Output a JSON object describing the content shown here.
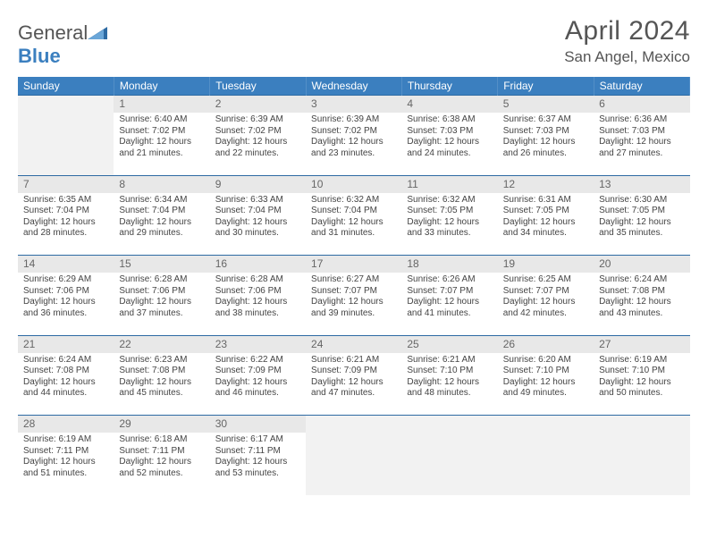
{
  "brand": {
    "text1": "General",
    "text2": "Blue"
  },
  "title": "April 2024",
  "location": "San Angel, Mexico",
  "colors": {
    "header_bg": "#3b7fbf",
    "header_text": "#ffffff",
    "daynum_bg": "#e8e8e8",
    "row_divider": "#2d6aa3",
    "body_text": "#444444"
  },
  "day_headers": [
    "Sunday",
    "Monday",
    "Tuesday",
    "Wednesday",
    "Thursday",
    "Friday",
    "Saturday"
  ],
  "weeks": [
    [
      null,
      {
        "n": "1",
        "sr": "Sunrise: 6:40 AM",
        "ss": "Sunset: 7:02 PM",
        "d1": "Daylight: 12 hours",
        "d2": "and 21 minutes."
      },
      {
        "n": "2",
        "sr": "Sunrise: 6:39 AM",
        "ss": "Sunset: 7:02 PM",
        "d1": "Daylight: 12 hours",
        "d2": "and 22 minutes."
      },
      {
        "n": "3",
        "sr": "Sunrise: 6:39 AM",
        "ss": "Sunset: 7:02 PM",
        "d1": "Daylight: 12 hours",
        "d2": "and 23 minutes."
      },
      {
        "n": "4",
        "sr": "Sunrise: 6:38 AM",
        "ss": "Sunset: 7:03 PM",
        "d1": "Daylight: 12 hours",
        "d2": "and 24 minutes."
      },
      {
        "n": "5",
        "sr": "Sunrise: 6:37 AM",
        "ss": "Sunset: 7:03 PM",
        "d1": "Daylight: 12 hours",
        "d2": "and 26 minutes."
      },
      {
        "n": "6",
        "sr": "Sunrise: 6:36 AM",
        "ss": "Sunset: 7:03 PM",
        "d1": "Daylight: 12 hours",
        "d2": "and 27 minutes."
      }
    ],
    [
      {
        "n": "7",
        "sr": "Sunrise: 6:35 AM",
        "ss": "Sunset: 7:04 PM",
        "d1": "Daylight: 12 hours",
        "d2": "and 28 minutes."
      },
      {
        "n": "8",
        "sr": "Sunrise: 6:34 AM",
        "ss": "Sunset: 7:04 PM",
        "d1": "Daylight: 12 hours",
        "d2": "and 29 minutes."
      },
      {
        "n": "9",
        "sr": "Sunrise: 6:33 AM",
        "ss": "Sunset: 7:04 PM",
        "d1": "Daylight: 12 hours",
        "d2": "and 30 minutes."
      },
      {
        "n": "10",
        "sr": "Sunrise: 6:32 AM",
        "ss": "Sunset: 7:04 PM",
        "d1": "Daylight: 12 hours",
        "d2": "and 31 minutes."
      },
      {
        "n": "11",
        "sr": "Sunrise: 6:32 AM",
        "ss": "Sunset: 7:05 PM",
        "d1": "Daylight: 12 hours",
        "d2": "and 33 minutes."
      },
      {
        "n": "12",
        "sr": "Sunrise: 6:31 AM",
        "ss": "Sunset: 7:05 PM",
        "d1": "Daylight: 12 hours",
        "d2": "and 34 minutes."
      },
      {
        "n": "13",
        "sr": "Sunrise: 6:30 AM",
        "ss": "Sunset: 7:05 PM",
        "d1": "Daylight: 12 hours",
        "d2": "and 35 minutes."
      }
    ],
    [
      {
        "n": "14",
        "sr": "Sunrise: 6:29 AM",
        "ss": "Sunset: 7:06 PM",
        "d1": "Daylight: 12 hours",
        "d2": "and 36 minutes."
      },
      {
        "n": "15",
        "sr": "Sunrise: 6:28 AM",
        "ss": "Sunset: 7:06 PM",
        "d1": "Daylight: 12 hours",
        "d2": "and 37 minutes."
      },
      {
        "n": "16",
        "sr": "Sunrise: 6:28 AM",
        "ss": "Sunset: 7:06 PM",
        "d1": "Daylight: 12 hours",
        "d2": "and 38 minutes."
      },
      {
        "n": "17",
        "sr": "Sunrise: 6:27 AM",
        "ss": "Sunset: 7:07 PM",
        "d1": "Daylight: 12 hours",
        "d2": "and 39 minutes."
      },
      {
        "n": "18",
        "sr": "Sunrise: 6:26 AM",
        "ss": "Sunset: 7:07 PM",
        "d1": "Daylight: 12 hours",
        "d2": "and 41 minutes."
      },
      {
        "n": "19",
        "sr": "Sunrise: 6:25 AM",
        "ss": "Sunset: 7:07 PM",
        "d1": "Daylight: 12 hours",
        "d2": "and 42 minutes."
      },
      {
        "n": "20",
        "sr": "Sunrise: 6:24 AM",
        "ss": "Sunset: 7:08 PM",
        "d1": "Daylight: 12 hours",
        "d2": "and 43 minutes."
      }
    ],
    [
      {
        "n": "21",
        "sr": "Sunrise: 6:24 AM",
        "ss": "Sunset: 7:08 PM",
        "d1": "Daylight: 12 hours",
        "d2": "and 44 minutes."
      },
      {
        "n": "22",
        "sr": "Sunrise: 6:23 AM",
        "ss": "Sunset: 7:08 PM",
        "d1": "Daylight: 12 hours",
        "d2": "and 45 minutes."
      },
      {
        "n": "23",
        "sr": "Sunrise: 6:22 AM",
        "ss": "Sunset: 7:09 PM",
        "d1": "Daylight: 12 hours",
        "d2": "and 46 minutes."
      },
      {
        "n": "24",
        "sr": "Sunrise: 6:21 AM",
        "ss": "Sunset: 7:09 PM",
        "d1": "Daylight: 12 hours",
        "d2": "and 47 minutes."
      },
      {
        "n": "25",
        "sr": "Sunrise: 6:21 AM",
        "ss": "Sunset: 7:10 PM",
        "d1": "Daylight: 12 hours",
        "d2": "and 48 minutes."
      },
      {
        "n": "26",
        "sr": "Sunrise: 6:20 AM",
        "ss": "Sunset: 7:10 PM",
        "d1": "Daylight: 12 hours",
        "d2": "and 49 minutes."
      },
      {
        "n": "27",
        "sr": "Sunrise: 6:19 AM",
        "ss": "Sunset: 7:10 PM",
        "d1": "Daylight: 12 hours",
        "d2": "and 50 minutes."
      }
    ],
    [
      {
        "n": "28",
        "sr": "Sunrise: 6:19 AM",
        "ss": "Sunset: 7:11 PM",
        "d1": "Daylight: 12 hours",
        "d2": "and 51 minutes."
      },
      {
        "n": "29",
        "sr": "Sunrise: 6:18 AM",
        "ss": "Sunset: 7:11 PM",
        "d1": "Daylight: 12 hours",
        "d2": "and 52 minutes."
      },
      {
        "n": "30",
        "sr": "Sunrise: 6:17 AM",
        "ss": "Sunset: 7:11 PM",
        "d1": "Daylight: 12 hours",
        "d2": "and 53 minutes."
      },
      null,
      null,
      null,
      null
    ]
  ]
}
